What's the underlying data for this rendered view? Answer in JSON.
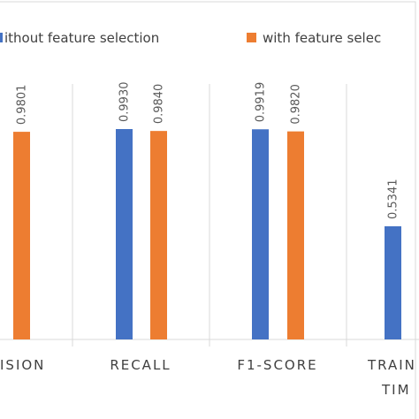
{
  "chart_data": {
    "type": "bar",
    "categories": [
      "PRECISION",
      "RECALL",
      "F1-SCORE",
      "TRAINING TIME"
    ],
    "categories_visible": [
      "ISION",
      "RECALL",
      "F1-SCORE",
      "TRAIN"
    ],
    "category_second_line": [
      "",
      "",
      "",
      "TIM"
    ],
    "series": [
      {
        "name": "without feature selection",
        "values": [
          null,
          0.993,
          0.9919,
          0.5341
        ],
        "labels": [
          "",
          "0.9930",
          "0.9919",
          "0.5341"
        ],
        "color": "#4472C4"
      },
      {
        "name": "with feature selection",
        "values": [
          0.9801,
          0.984,
          0.982,
          null
        ],
        "labels": [
          "0.9801",
          "0.9840",
          "0.9820",
          ""
        ],
        "color": "#ED7D31"
      }
    ],
    "legend": {
      "position": "top",
      "labels_visible": [
        "ithout feature selection",
        "with feature selec"
      ]
    },
    "ylim": [
      0,
      1
    ],
    "grid": false,
    "category_separators": true
  }
}
